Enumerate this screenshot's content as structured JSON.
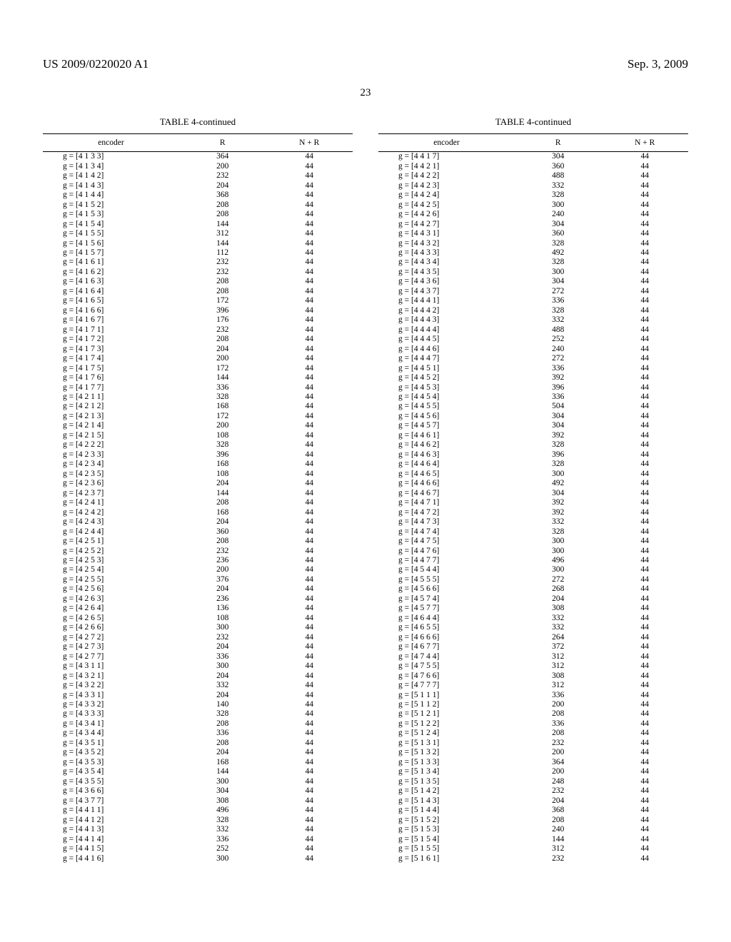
{
  "header": {
    "left": "US 2009/0220020 A1",
    "right": "Sep. 3, 2009"
  },
  "page_number": "23",
  "caption": "TABLE 4-continued",
  "columns": {
    "encoder": "encoder",
    "R": "R",
    "NR": "N + R"
  },
  "left_rows": [
    {
      "e": "g = [4 1 3 3]",
      "r": "364",
      "nr": "44"
    },
    {
      "e": "g = [4 1 3 4]",
      "r": "200",
      "nr": "44"
    },
    {
      "e": "g = [4 1 4 2]",
      "r": "232",
      "nr": "44"
    },
    {
      "e": "g = [4 1 4 3]",
      "r": "204",
      "nr": "44"
    },
    {
      "e": "g = [4 1 4 4]",
      "r": "368",
      "nr": "44"
    },
    {
      "e": "g = [4 1 5 2]",
      "r": "208",
      "nr": "44"
    },
    {
      "e": "g = [4 1 5 3]",
      "r": "208",
      "nr": "44"
    },
    {
      "e": "g = [4 1 5 4]",
      "r": "144",
      "nr": "44"
    },
    {
      "e": "g = [4 1 5 5]",
      "r": "312",
      "nr": "44"
    },
    {
      "e": "g = [4 1 5 6]",
      "r": "144",
      "nr": "44"
    },
    {
      "e": "g = [4 1 5 7]",
      "r": "112",
      "nr": "44"
    },
    {
      "e": "g = [4 1 6 1]",
      "r": "232",
      "nr": "44"
    },
    {
      "e": "g = [4 1 6 2]",
      "r": "232",
      "nr": "44"
    },
    {
      "e": "g = [4 1 6 3]",
      "r": "208",
      "nr": "44"
    },
    {
      "e": "g = [4 1 6 4]",
      "r": "208",
      "nr": "44"
    },
    {
      "e": "g = [4 1 6 5]",
      "r": "172",
      "nr": "44"
    },
    {
      "e": "g = [4 1 6 6]",
      "r": "396",
      "nr": "44"
    },
    {
      "e": "g = [4 1 6 7]",
      "r": "176",
      "nr": "44"
    },
    {
      "e": "g = [4 1 7 1]",
      "r": "232",
      "nr": "44"
    },
    {
      "e": "g = [4 1 7 2]",
      "r": "208",
      "nr": "44"
    },
    {
      "e": "g = [4 1 7 3]",
      "r": "204",
      "nr": "44"
    },
    {
      "e": "g = [4 1 7 4]",
      "r": "200",
      "nr": "44"
    },
    {
      "e": "g = [4 1 7 5]",
      "r": "172",
      "nr": "44"
    },
    {
      "e": "g = [4 1 7 6]",
      "r": "144",
      "nr": "44"
    },
    {
      "e": "g = [4 1 7 7]",
      "r": "336",
      "nr": "44"
    },
    {
      "e": "g = [4 2 1 1]",
      "r": "328",
      "nr": "44"
    },
    {
      "e": "g = [4 2 1 2]",
      "r": "168",
      "nr": "44"
    },
    {
      "e": "g = [4 2 1 3]",
      "r": "172",
      "nr": "44"
    },
    {
      "e": "g = [4 2 1 4]",
      "r": "200",
      "nr": "44"
    },
    {
      "e": "g = [4 2 1 5]",
      "r": "108",
      "nr": "44"
    },
    {
      "e": "g = [4 2 2 2]",
      "r": "328",
      "nr": "44"
    },
    {
      "e": "g = [4 2 3 3]",
      "r": "396",
      "nr": "44"
    },
    {
      "e": "g = [4 2 3 4]",
      "r": "168",
      "nr": "44"
    },
    {
      "e": "g = [4 2 3 5]",
      "r": "108",
      "nr": "44"
    },
    {
      "e": "g = [4 2 3 6]",
      "r": "204",
      "nr": "44"
    },
    {
      "e": "g = [4 2 3 7]",
      "r": "144",
      "nr": "44"
    },
    {
      "e": "g = [4 2 4 1]",
      "r": "208",
      "nr": "44"
    },
    {
      "e": "g = [4 2 4 2]",
      "r": "168",
      "nr": "44"
    },
    {
      "e": "g = [4 2 4 3]",
      "r": "204",
      "nr": "44"
    },
    {
      "e": "g = [4 2 4 4]",
      "r": "360",
      "nr": "44"
    },
    {
      "e": "g = [4 2 5 1]",
      "r": "208",
      "nr": "44"
    },
    {
      "e": "g = [4 2 5 2]",
      "r": "232",
      "nr": "44"
    },
    {
      "e": "g = [4 2 5 3]",
      "r": "236",
      "nr": "44"
    },
    {
      "e": "g = [4 2 5 4]",
      "r": "200",
      "nr": "44"
    },
    {
      "e": "g = [4 2 5 5]",
      "r": "376",
      "nr": "44"
    },
    {
      "e": "g = [4 2 5 6]",
      "r": "204",
      "nr": "44"
    },
    {
      "e": "g = [4 2 6 3]",
      "r": "236",
      "nr": "44"
    },
    {
      "e": "g = [4 2 6 4]",
      "r": "136",
      "nr": "44"
    },
    {
      "e": "g = [4 2 6 5]",
      "r": "108",
      "nr": "44"
    },
    {
      "e": "g = [4 2 6 6]",
      "r": "300",
      "nr": "44"
    },
    {
      "e": "g = [4 2 7 2]",
      "r": "232",
      "nr": "44"
    },
    {
      "e": "g = [4 2 7 3]",
      "r": "204",
      "nr": "44"
    },
    {
      "e": "g = [4 2 7 7]",
      "r": "336",
      "nr": "44"
    },
    {
      "e": "g = [4 3 1 1]",
      "r": "300",
      "nr": "44"
    },
    {
      "e": "g = [4 3 2 1]",
      "r": "204",
      "nr": "44"
    },
    {
      "e": "g = [4 3 2 2]",
      "r": "332",
      "nr": "44"
    },
    {
      "e": "g = [4 3 3 1]",
      "r": "204",
      "nr": "44"
    },
    {
      "e": "g = [4 3 3 2]",
      "r": "140",
      "nr": "44"
    },
    {
      "e": "g = [4 3 3 3]",
      "r": "328",
      "nr": "44"
    },
    {
      "e": "g = [4 3 4 1]",
      "r": "208",
      "nr": "44"
    },
    {
      "e": "g = [4 3 4 4]",
      "r": "336",
      "nr": "44"
    },
    {
      "e": "g = [4 3 5 1]",
      "r": "208",
      "nr": "44"
    },
    {
      "e": "g = [4 3 5 2]",
      "r": "204",
      "nr": "44"
    },
    {
      "e": "g = [4 3 5 3]",
      "r": "168",
      "nr": "44"
    },
    {
      "e": "g = [4 3 5 4]",
      "r": "144",
      "nr": "44"
    },
    {
      "e": "g = [4 3 5 5]",
      "r": "300",
      "nr": "44"
    },
    {
      "e": "g = [4 3 6 6]",
      "r": "304",
      "nr": "44"
    },
    {
      "e": "g = [4 3 7 7]",
      "r": "308",
      "nr": "44"
    },
    {
      "e": "g = [4 4 1 1]",
      "r": "496",
      "nr": "44"
    },
    {
      "e": "g = [4 4 1 2]",
      "r": "328",
      "nr": "44"
    },
    {
      "e": "g = [4 4 1 3]",
      "r": "332",
      "nr": "44"
    },
    {
      "e": "g = [4 4 1 4]",
      "r": "336",
      "nr": "44"
    },
    {
      "e": "g = [4 4 1 5]",
      "r": "252",
      "nr": "44"
    },
    {
      "e": "g = [4 4 1 6]",
      "r": "300",
      "nr": "44"
    }
  ],
  "right_rows": [
    {
      "e": "g = [4 4 1 7]",
      "r": "304",
      "nr": "44"
    },
    {
      "e": "g = [4 4 2 1]",
      "r": "360",
      "nr": "44"
    },
    {
      "e": "g = [4 4 2 2]",
      "r": "488",
      "nr": "44"
    },
    {
      "e": "g = [4 4 2 3]",
      "r": "332",
      "nr": "44"
    },
    {
      "e": "g = [4 4 2 4]",
      "r": "328",
      "nr": "44"
    },
    {
      "e": "g = [4 4 2 5]",
      "r": "300",
      "nr": "44"
    },
    {
      "e": "g = [4 4 2 6]",
      "r": "240",
      "nr": "44"
    },
    {
      "e": "g = [4 4 2 7]",
      "r": "304",
      "nr": "44"
    },
    {
      "e": "g = [4 4 3 1]",
      "r": "360",
      "nr": "44"
    },
    {
      "e": "g = [4 4 3 2]",
      "r": "328",
      "nr": "44"
    },
    {
      "e": "g = [4 4 3 3]",
      "r": "492",
      "nr": "44"
    },
    {
      "e": "g = [4 4 3 4]",
      "r": "328",
      "nr": "44"
    },
    {
      "e": "g = [4 4 3 5]",
      "r": "300",
      "nr": "44"
    },
    {
      "e": "g = [4 4 3 6]",
      "r": "304",
      "nr": "44"
    },
    {
      "e": "g = [4 4 3 7]",
      "r": "272",
      "nr": "44"
    },
    {
      "e": "g = [4 4 4 1]",
      "r": "336",
      "nr": "44"
    },
    {
      "e": "g = [4 4 4 2]",
      "r": "328",
      "nr": "44"
    },
    {
      "e": "g = [4 4 4 3]",
      "r": "332",
      "nr": "44"
    },
    {
      "e": "g = [4 4 4 4]",
      "r": "488",
      "nr": "44"
    },
    {
      "e": "g = [4 4 4 5]",
      "r": "252",
      "nr": "44"
    },
    {
      "e": "g = [4 4 4 6]",
      "r": "240",
      "nr": "44"
    },
    {
      "e": "g = [4 4 4 7]",
      "r": "272",
      "nr": "44"
    },
    {
      "e": "g = [4 4 5 1]",
      "r": "336",
      "nr": "44"
    },
    {
      "e": "g = [4 4 5 2]",
      "r": "392",
      "nr": "44"
    },
    {
      "e": "g = [4 4 5 3]",
      "r": "396",
      "nr": "44"
    },
    {
      "e": "g = [4 4 5 4]",
      "r": "336",
      "nr": "44"
    },
    {
      "e": "g = [4 4 5 5]",
      "r": "504",
      "nr": "44"
    },
    {
      "e": "g = [4 4 5 6]",
      "r": "304",
      "nr": "44"
    },
    {
      "e": "g = [4 4 5 7]",
      "r": "304",
      "nr": "44"
    },
    {
      "e": "g = [4 4 6 1]",
      "r": "392",
      "nr": "44"
    },
    {
      "e": "g = [4 4 6 2]",
      "r": "328",
      "nr": "44"
    },
    {
      "e": "g = [4 4 6 3]",
      "r": "396",
      "nr": "44"
    },
    {
      "e": "g = [4 4 6 4]",
      "r": "328",
      "nr": "44"
    },
    {
      "e": "g = [4 4 6 5]",
      "r": "300",
      "nr": "44"
    },
    {
      "e": "g = [4 4 6 6]",
      "r": "492",
      "nr": "44"
    },
    {
      "e": "g = [4 4 6 7]",
      "r": "304",
      "nr": "44"
    },
    {
      "e": "g = [4 4 7 1]",
      "r": "392",
      "nr": "44"
    },
    {
      "e": "g = [4 4 7 2]",
      "r": "392",
      "nr": "44"
    },
    {
      "e": "g = [4 4 7 3]",
      "r": "332",
      "nr": "44"
    },
    {
      "e": "g = [4 4 7 4]",
      "r": "328",
      "nr": "44"
    },
    {
      "e": "g = [4 4 7 5]",
      "r": "300",
      "nr": "44"
    },
    {
      "e": "g = [4 4 7 6]",
      "r": "300",
      "nr": "44"
    },
    {
      "e": "g = [4 4 7 7]",
      "r": "496",
      "nr": "44"
    },
    {
      "e": "g = [4 5 4 4]",
      "r": "300",
      "nr": "44"
    },
    {
      "e": "g = [4 5 5 5]",
      "r": "272",
      "nr": "44"
    },
    {
      "e": "g = [4 5 6 6]",
      "r": "268",
      "nr": "44"
    },
    {
      "e": "g = [4 5 7 4]",
      "r": "204",
      "nr": "44"
    },
    {
      "e": "g = [4 5 7 7]",
      "r": "308",
      "nr": "44"
    },
    {
      "e": "g = [4 6 4 4]",
      "r": "332",
      "nr": "44"
    },
    {
      "e": "g = [4 6 5 5]",
      "r": "332",
      "nr": "44"
    },
    {
      "e": "g = [4 6 6 6]",
      "r": "264",
      "nr": "44"
    },
    {
      "e": "g = [4 6 7 7]",
      "r": "372",
      "nr": "44"
    },
    {
      "e": "g = [4 7 4 4]",
      "r": "312",
      "nr": "44"
    },
    {
      "e": "g = [4 7 5 5]",
      "r": "312",
      "nr": "44"
    },
    {
      "e": "g = [4 7 6 6]",
      "r": "308",
      "nr": "44"
    },
    {
      "e": "g = [4 7 7 7]",
      "r": "312",
      "nr": "44"
    },
    {
      "e": "g = [5 1 1 1]",
      "r": "336",
      "nr": "44"
    },
    {
      "e": "g = [5 1 1 2]",
      "r": "200",
      "nr": "44"
    },
    {
      "e": "g = [5 1 2 1]",
      "r": "208",
      "nr": "44"
    },
    {
      "e": "g = [5 1 2 2]",
      "r": "336",
      "nr": "44"
    },
    {
      "e": "g = [5 1 2 4]",
      "r": "208",
      "nr": "44"
    },
    {
      "e": "g = [5 1 3 1]",
      "r": "232",
      "nr": "44"
    },
    {
      "e": "g = [5 1 3 2]",
      "r": "200",
      "nr": "44"
    },
    {
      "e": "g = [5 1 3 3]",
      "r": "364",
      "nr": "44"
    },
    {
      "e": "g = [5 1 3 4]",
      "r": "200",
      "nr": "44"
    },
    {
      "e": "g = [5 1 3 5]",
      "r": "248",
      "nr": "44"
    },
    {
      "e": "g = [5 1 4 2]",
      "r": "232",
      "nr": "44"
    },
    {
      "e": "g = [5 1 4 3]",
      "r": "204",
      "nr": "44"
    },
    {
      "e": "g = [5 1 4 4]",
      "r": "368",
      "nr": "44"
    },
    {
      "e": "g = [5 1 5 2]",
      "r": "208",
      "nr": "44"
    },
    {
      "e": "g = [5 1 5 3]",
      "r": "240",
      "nr": "44"
    },
    {
      "e": "g = [5 1 5 4]",
      "r": "144",
      "nr": "44"
    },
    {
      "e": "g = [5 1 5 5]",
      "r": "312",
      "nr": "44"
    },
    {
      "e": "g = [5 1 6 1]",
      "r": "232",
      "nr": "44"
    }
  ]
}
